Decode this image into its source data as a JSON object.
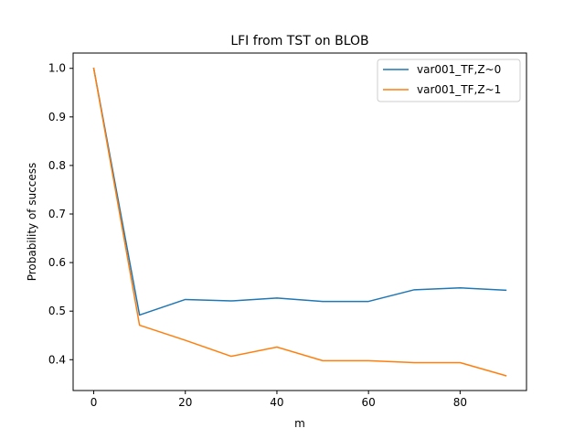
{
  "chart_data": {
    "type": "line",
    "title": "LFI from TST on BLOB",
    "xlabel": "m",
    "ylabel": "Probability of success",
    "xlim": [
      -4.5,
      94.5
    ],
    "ylim": [
      0.3365,
      1.0315
    ],
    "xticks": [
      0,
      20,
      40,
      60,
      80
    ],
    "xtick_labels": [
      "0",
      "20",
      "40",
      "60",
      "80"
    ],
    "yticks": [
      0.4,
      0.5,
      0.6,
      0.7,
      0.8,
      0.9,
      1.0
    ],
    "ytick_labels": [
      "0.4",
      "0.5",
      "0.6",
      "0.7",
      "0.8",
      "0.9",
      "1.0"
    ],
    "grid": false,
    "legend_position": "top-right",
    "x": [
      0,
      10,
      20,
      30,
      40,
      50,
      60,
      70,
      80,
      90
    ],
    "series": [
      {
        "name": "var001_TF,Z~0",
        "color": "#1f77b4",
        "values": [
          1.0,
          0.492,
          0.524,
          0.521,
          0.527,
          0.52,
          0.52,
          0.544,
          0.548,
          0.543
        ]
      },
      {
        "name": "var001_TF,Z~1",
        "color": "#ff7f0e",
        "values": [
          1.0,
          0.471,
          0.44,
          0.407,
          0.426,
          0.398,
          0.398,
          0.394,
          0.394,
          0.367
        ]
      }
    ]
  }
}
